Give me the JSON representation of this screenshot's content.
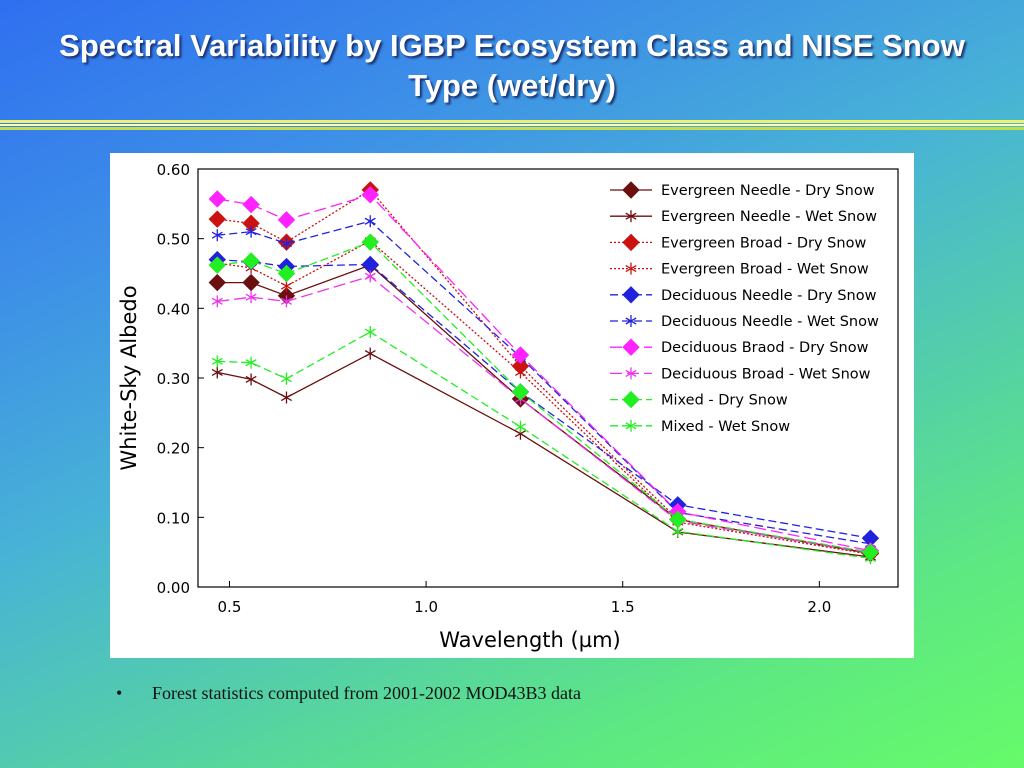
{
  "slide": {
    "title": "Spectral Variability by IGBP Ecosystem Class and NISE Snow Type (wet/dry)",
    "bullet_symbol": "•",
    "bullet_text": "Forest statistics computed from 2001-2002 MOD43B3 data"
  },
  "chart_data": {
    "type": "line",
    "title": "",
    "xlabel": "Wavelength (µm)",
    "ylabel": "White-Sky Albedo",
    "xlim": [
      0.42,
      2.2
    ],
    "ylim": [
      0,
      0.6
    ],
    "xticks": [
      {
        "v": 0.5,
        "label": "0.5"
      },
      {
        "v": 1.0,
        "label": "1.0"
      },
      {
        "v": 1.5,
        "label": "1.5"
      },
      {
        "v": 2.0,
        "label": "2.0"
      }
    ],
    "yticks": [
      {
        "v": 0.0,
        "label": "0.00"
      },
      {
        "v": 0.1,
        "label": "0.10"
      },
      {
        "v": 0.2,
        "label": "0.20"
      },
      {
        "v": 0.3,
        "label": "0.30"
      },
      {
        "v": 0.4,
        "label": "0.40"
      },
      {
        "v": 0.5,
        "label": "0.50"
      },
      {
        "v": 0.6,
        "label": "0.60"
      }
    ],
    "grid": false,
    "legend_position": "top-right",
    "x": [
      0.469,
      0.555,
      0.645,
      0.858,
      1.24,
      1.64,
      2.13
    ],
    "series": [
      {
        "name": "Evergreen Needle - Dry Snow",
        "color": "#6b0f0f",
        "dash": "solid",
        "marker": "diamond",
        "values": [
          0.437,
          0.437,
          0.418,
          0.462,
          0.27,
          0.097,
          0.048
        ]
      },
      {
        "name": "Evergreen Needle - Wet Snow",
        "color": "#6b0f0f",
        "dash": "solid",
        "marker": "asterisk",
        "values": [
          0.308,
          0.298,
          0.272,
          0.335,
          0.22,
          0.079,
          0.043
        ]
      },
      {
        "name": "Evergreen Broad - Dry Snow",
        "color": "#cc1111",
        "dash": "dot",
        "marker": "diamond",
        "values": [
          0.528,
          0.522,
          0.495,
          0.57,
          0.317,
          0.097,
          0.049
        ]
      },
      {
        "name": "Evergreen Broad - Wet Snow",
        "color": "#cc1111",
        "dash": "dot",
        "marker": "asterisk",
        "values": [
          0.465,
          0.458,
          0.432,
          0.497,
          0.308,
          0.093,
          0.047
        ]
      },
      {
        "name": "Deciduous Needle - Dry Snow",
        "color": "#2222dd",
        "dash": "dash",
        "marker": "diamond",
        "values": [
          0.47,
          0.467,
          0.46,
          0.463,
          0.28,
          0.118,
          0.07
        ]
      },
      {
        "name": "Deciduous Needle - Wet Snow",
        "color": "#2222dd",
        "dash": "dash",
        "marker": "asterisk",
        "values": [
          0.505,
          0.51,
          0.493,
          0.525,
          0.33,
          0.107,
          0.062
        ]
      },
      {
        "name": "Deciduous Braod - Dry Snow",
        "color": "#ff22ff",
        "dash": "longdash",
        "marker": "diamond",
        "values": [
          0.557,
          0.549,
          0.527,
          0.563,
          0.333,
          0.108,
          0.052
        ]
      },
      {
        "name": "Deciduous Broad - Wet Snow",
        "color": "#ee33ee",
        "dash": "longdash",
        "marker": "asterisk",
        "values": [
          0.41,
          0.416,
          0.41,
          0.446,
          0.27,
          0.095,
          0.049
        ]
      },
      {
        "name": "Mixed - Dry Snow",
        "color": "#22ee22",
        "dash": "dash",
        "marker": "diamond",
        "values": [
          0.462,
          0.468,
          0.45,
          0.495,
          0.28,
          0.097,
          0.05
        ]
      },
      {
        "name": "Mixed - Wet Snow",
        "color": "#22ee22",
        "dash": "dash",
        "marker": "asterisk",
        "values": [
          0.324,
          0.322,
          0.299,
          0.366,
          0.23,
          0.08,
          0.041
        ]
      }
    ]
  }
}
